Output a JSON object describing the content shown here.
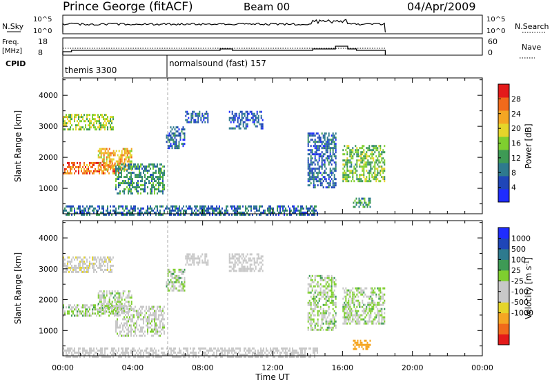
{
  "header": {
    "station": "Prince George (fitACF)",
    "beam": "Beam 00",
    "date": "04/Apr/2009"
  },
  "summary_panel": {
    "nsky_label": "N.Sky",
    "nsky_ticks": [
      "10^5",
      "10^0"
    ],
    "nsearch_label": "N.Search",
    "freq_label_1": "Freq.",
    "freq_label_2": "[MHz]",
    "freq_ticks": [
      "18",
      "8"
    ],
    "nave_ticks": [
      "60",
      "0"
    ],
    "nave_label": "Nave",
    "cpid_label": "CPID",
    "cpid_modes": [
      {
        "name": "themis 3300",
        "start_hour": 0
      },
      {
        "name": "normalsound (fast) 157",
        "start_hour": 6
      }
    ]
  },
  "colors": {
    "power_scale": [
      "#1f2cff",
      "#1f46b8",
      "#2e7a8e",
      "#3e9a55",
      "#7fcf2f",
      "#e5d52a",
      "#f5a623",
      "#f16a1b",
      "#e41a1a"
    ],
    "velocity_scale": [
      "#e41a1a",
      "#f16a1b",
      "#f5a623",
      "#e5d52a",
      "#c8c8c8",
      "#c8c8c8",
      "#7fcf2f",
      "#3e9a55",
      "#2e7a8e",
      "#1f46b8",
      "#1f2cff"
    ]
  },
  "chart_data": [
    {
      "type": "heatmap",
      "panel": "power",
      "ylabel": "Slant Range [km]",
      "xlim": [
        0,
        24
      ],
      "ylim": [
        180,
        4560
      ],
      "yticks": [
        "4000",
        "3000",
        "2000",
        "1000"
      ],
      "colorbar_label": "Power [dB]",
      "colorbar_ticks": [
        "28",
        "24",
        "20",
        "16",
        "12",
        "8",
        "4"
      ],
      "clim": [
        0,
        32
      ],
      "echo_regions": [
        {
          "t0": 0.0,
          "t1": 3.2,
          "r0": 1450,
          "r1": 1850,
          "level": 26
        },
        {
          "t0": 2.0,
          "t1": 3.9,
          "r0": 1600,
          "r1": 2300,
          "level": 22
        },
        {
          "t0": 0.0,
          "t1": 2.9,
          "r0": 2900,
          "r1": 3400,
          "level": 17
        },
        {
          "t0": 3.0,
          "t1": 5.8,
          "r0": 800,
          "r1": 1800,
          "level": 11
        },
        {
          "t0": 5.9,
          "t1": 7.0,
          "r0": 2300,
          "r1": 3000,
          "level": 7
        },
        {
          "t0": 7.0,
          "t1": 8.3,
          "r0": 3100,
          "r1": 3500,
          "level": 6
        },
        {
          "t0": 9.5,
          "t1": 11.4,
          "r0": 2900,
          "r1": 3500,
          "level": 6
        },
        {
          "t0": 14.0,
          "t1": 15.6,
          "r0": 1000,
          "r1": 2800,
          "level": 7
        },
        {
          "t0": 16.0,
          "t1": 18.4,
          "r0": 1200,
          "r1": 2400,
          "level": 15
        },
        {
          "t0": 16.6,
          "t1": 17.6,
          "r0": 400,
          "r1": 700,
          "level": 12
        },
        {
          "t0": 0.0,
          "t1": 14.6,
          "r0": 180,
          "r1": 450,
          "level": 8
        }
      ]
    },
    {
      "type": "heatmap",
      "panel": "velocity",
      "ylabel": "Slant Range [km]",
      "xlabel": "Time UT",
      "xlim": [
        0,
        24
      ],
      "xticks": [
        "00:00",
        "04:00",
        "08:00",
        "12:00",
        "16:00",
        "20:00",
        "00:00"
      ],
      "ylim": [
        180,
        4560
      ],
      "yticks": [
        "4000",
        "3000",
        "2000",
        "1000"
      ],
      "colorbar_label": "Velocity [m s^-1]",
      "colorbar_ticks": [
        "1000",
        "500",
        "100",
        "25",
        "-25",
        "-100",
        "-500",
        "-1000"
      ],
      "echo_regions": [
        {
          "t0": 0.0,
          "t1": 3.2,
          "r0": 1450,
          "r1": 1850,
          "level": 0
        },
        {
          "t0": 2.0,
          "t1": 3.9,
          "r0": 1600,
          "r1": 2300,
          "level": 0
        },
        {
          "t0": 0.0,
          "t1": 2.9,
          "r0": 2900,
          "r1": 3400,
          "level": -80
        },
        {
          "t0": 3.0,
          "t1": 5.8,
          "r0": 800,
          "r1": 1800,
          "level": -20
        },
        {
          "t0": 5.9,
          "t1": 7.0,
          "r0": 2300,
          "r1": 3000,
          "level": 0
        },
        {
          "t0": 7.0,
          "t1": 8.3,
          "r0": 3100,
          "r1": 3500,
          "level": -60
        },
        {
          "t0": 9.5,
          "t1": 11.4,
          "r0": 2900,
          "r1": 3500,
          "level": -60
        },
        {
          "t0": 14.0,
          "t1": 15.6,
          "r0": 1000,
          "r1": 2800,
          "level": 0
        },
        {
          "t0": 16.0,
          "t1": 18.4,
          "r0": 1200,
          "r1": 2400,
          "level": 0
        },
        {
          "t0": 16.6,
          "t1": 17.6,
          "r0": 400,
          "r1": 700,
          "level": -700
        },
        {
          "t0": 0.0,
          "t1": 14.6,
          "r0": 180,
          "r1": 450,
          "level": -60
        }
      ]
    }
  ]
}
